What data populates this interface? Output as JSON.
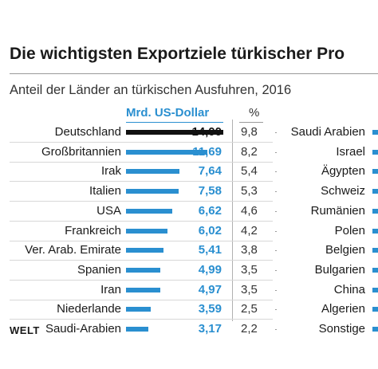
{
  "title": "Die wichtigsten Exportziele türkischer Pro",
  "subtitle": "Anteil der Länder an türkischen Ausfuhren, 2016",
  "brand": "WELT",
  "colors": {
    "accent": "#2a8fd0",
    "highlight": "#111111"
  },
  "chart_data": {
    "type": "bar",
    "orientation": "horizontal",
    "value_header": "Mrd. US-Dollar",
    "share_header": "%",
    "xlim": [
      0,
      14
    ],
    "rows": [
      {
        "country": "Deutschland",
        "value": 14.0,
        "value_label": "14,00",
        "share_label": "9,8"
      },
      {
        "country": "Großbritannien",
        "value": 11.69,
        "value_label": "11,69",
        "share_label": "8,2"
      },
      {
        "country": "Irak",
        "value": 7.64,
        "value_label": "7,64",
        "share_label": "5,4"
      },
      {
        "country": "Italien",
        "value": 7.58,
        "value_label": "7,58",
        "share_label": "5,3"
      },
      {
        "country": "USA",
        "value": 6.62,
        "value_label": "6,62",
        "share_label": "4,6"
      },
      {
        "country": "Frankreich",
        "value": 6.02,
        "value_label": "6,02",
        "share_label": "4,2"
      },
      {
        "country": "Ver. Arab. Emirate",
        "value": 5.41,
        "value_label": "5,41",
        "share_label": "3,8"
      },
      {
        "country": "Spanien",
        "value": 4.99,
        "value_label": "4,99",
        "share_label": "3,5"
      },
      {
        "country": "Iran",
        "value": 4.97,
        "value_label": "4,97",
        "share_label": "3,5"
      },
      {
        "country": "Niederlande",
        "value": 3.59,
        "value_label": "3,59",
        "share_label": "2,5"
      },
      {
        "country": "Saudi-Arabien",
        "value": 3.17,
        "value_label": "3,17",
        "share_label": "2,2"
      }
    ],
    "right_column_countries": [
      "Saudi Arabien",
      "Israel",
      "Ägypten",
      "Schweiz",
      "Rumänien",
      "Polen",
      "Belgien",
      "Bulgarien",
      "China",
      "Algerien",
      "Sonstige"
    ]
  }
}
